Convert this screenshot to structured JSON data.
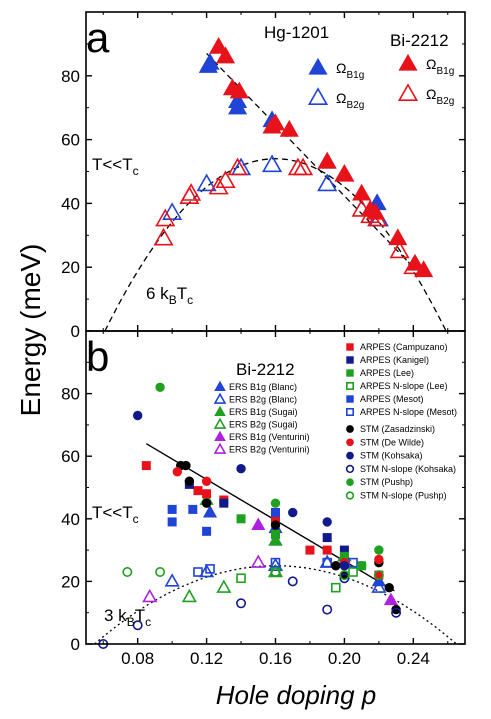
{
  "figure": {
    "ylabel": "Energy  (meV)",
    "xlabel": "Hole doping  p",
    "xticks": [
      "0.08",
      "0.12",
      "0.16",
      "0.20",
      "0.24"
    ],
    "colors": {
      "blue": "#1f44d6",
      "red": "#e8121a",
      "green": "#20a020",
      "black": "#000000",
      "purple": "#b020e0",
      "darkblue": "#101a8c"
    }
  },
  "chart_data": [
    {
      "type": "scatter",
      "panel_label": "a",
      "xlim": [
        0.05,
        0.27
      ],
      "ylim": [
        0,
        100
      ],
      "yticks": [
        "0",
        "20",
        "40",
        "60",
        "80"
      ],
      "annotations": {
        "regime": "T<<T",
        "regime_sub": "c",
        "line": "6 k",
        "line_sub1": "B",
        "line_mid": "T",
        "line_sub2": "c"
      },
      "legend": {
        "group1": "Hg-1201",
        "group2": "Bi-2212",
        "omega": "Ω",
        "b1g": "B1g",
        "b2g": "B2g"
      },
      "series": [
        {
          "name": "Hg-1201 ΩB1g",
          "marker": "tri-filled",
          "color": "#1f44d6",
          "points": [
            [
              0.121,
              83
            ],
            [
              0.122,
              84
            ],
            [
              0.138,
              70
            ],
            [
              0.138,
              72
            ],
            [
              0.158,
              66
            ],
            [
              0.19,
              53
            ],
            [
              0.219,
              40
            ]
          ]
        },
        {
          "name": "Hg-1201 ΩB2g",
          "marker": "tri-open",
          "color": "#1f44d6",
          "points": [
            [
              0.1,
              37
            ],
            [
              0.12,
              46
            ],
            [
              0.14,
              51
            ],
            [
              0.158,
              52
            ],
            [
              0.19,
              46
            ],
            [
              0.22,
              35
            ]
          ]
        },
        {
          "name": "Bi-2212 ΩB1g",
          "marker": "tri-filled",
          "color": "#e8121a",
          "points": [
            [
              0.127,
              89
            ],
            [
              0.131,
              86
            ],
            [
              0.135,
              76
            ],
            [
              0.139,
              75
            ],
            [
              0.158,
              64
            ],
            [
              0.16,
              65
            ],
            [
              0.168,
              63
            ],
            [
              0.19,
              53
            ],
            [
              0.2,
              49
            ],
            [
              0.21,
              43
            ],
            [
              0.215,
              38
            ],
            [
              0.218,
              37
            ],
            [
              0.231,
              29
            ],
            [
              0.241,
              21
            ],
            [
              0.246,
              19
            ]
          ]
        },
        {
          "name": "Bi-2212 ΩB2g",
          "marker": "tri-open",
          "color": "#e8121a",
          "points": [
            [
              0.095,
              29
            ],
            [
              0.096,
              35
            ],
            [
              0.11,
              42
            ],
            [
              0.111,
              43
            ],
            [
              0.127,
              45
            ],
            [
              0.131,
              47
            ],
            [
              0.138,
              51
            ],
            [
              0.173,
              51
            ],
            [
              0.176,
              51
            ],
            [
              0.2,
              49
            ],
            [
              0.21,
              38
            ],
            [
              0.215,
              36
            ],
            [
              0.219,
              35
            ],
            [
              0.232,
              25
            ],
            [
              0.24,
              20
            ]
          ]
        }
      ],
      "fit_lines": [
        {
          "style": "dashed",
          "points": [
            [
              0.12,
              87
            ],
            [
              0.24,
              20
            ]
          ]
        },
        {
          "style": "dashed-parabola",
          "center": 0.16,
          "peak": 54,
          "zero_left": 0.061,
          "zero_right": 0.259
        }
      ]
    },
    {
      "type": "scatter",
      "panel_label": "b",
      "xlim": [
        0.05,
        0.27
      ],
      "ylim": [
        0,
        100
      ],
      "yticks": [
        "0",
        "20",
        "40",
        "60",
        "80"
      ],
      "annotations": {
        "regime": "T<<T",
        "regime_sub": "c",
        "line": "3 k",
        "line_sub1": "B",
        "line_mid": "T",
        "line_sub2": "c"
      },
      "legend_title": "Bi-2212",
      "legend_left": [
        {
          "label": "ERS  B1g (Blanc)",
          "marker": "tri-filled",
          "color": "#1f44d6"
        },
        {
          "label": "ERS  B2g (Blanc)",
          "marker": "tri-open",
          "color": "#1f44d6"
        },
        {
          "label": "ERS  B1g (Sugai)",
          "marker": "tri-filled",
          "color": "#20a020"
        },
        {
          "label": "ERS  B2g (Sugai)",
          "marker": "tri-open",
          "color": "#20a020"
        },
        {
          "label": "ERS  B1g (Venturini)",
          "marker": "tri-filled",
          "color": "#b020e0"
        },
        {
          "label": "ERS B2g (Venturini)",
          "marker": "tri-open",
          "color": "#b020e0"
        }
      ],
      "legend_right": [
        {
          "label": "ARPES (Campuzano)",
          "marker": "sq-filled",
          "color": "#e8121a"
        },
        {
          "label": "ARPES (Kanigel)",
          "marker": "sq-filled",
          "color": "#101a8c"
        },
        {
          "label": "ARPES (Lee)",
          "marker": "sq-filled",
          "color": "#20a020"
        },
        {
          "label": "ARPES N-slope (Lee)",
          "marker": "sq-open",
          "color": "#20a020"
        },
        {
          "label": "ARPES (Mesot)",
          "marker": "sq-filled",
          "color": "#1f44d6"
        },
        {
          "label": "ARPES N-slope (Mesot)",
          "marker": "sq-open",
          "color": "#1f44d6"
        },
        {
          "label": "STM (Zasadzinski)",
          "marker": "ci-filled",
          "color": "#000000"
        },
        {
          "label": "STM (De Wilde)",
          "marker": "ci-filled",
          "color": "#e8121a"
        },
        {
          "label": "STM (Kohsaka)",
          "marker": "ci-filled",
          "color": "#101a8c"
        },
        {
          "label": "STM N-slope (Kohsaka)",
          "marker": "ci-open",
          "color": "#101a8c"
        },
        {
          "label": "STM (Pushp)",
          "marker": "ci-filled",
          "color": "#20a020"
        },
        {
          "label": "STM N-slope (Pushp)",
          "marker": "ci-open",
          "color": "#20a020"
        }
      ],
      "series": [
        {
          "name": "ERS  B1g (Blanc)",
          "marker": "tri-filled",
          "color": "#1f44d6",
          "points": [
            [
              0.122,
              42
            ],
            [
              0.16,
              37
            ],
            [
              0.16,
              33
            ],
            [
              0.2,
              28
            ],
            [
              0.22,
              20
            ]
          ]
        },
        {
          "name": "ERS  B2g (Blanc)",
          "marker": "tri-open",
          "color": "#1f44d6",
          "points": [
            [
              0.1,
              20
            ],
            [
              0.12,
              23
            ],
            [
              0.16,
              25
            ],
            [
              0.19,
              26
            ],
            [
              0.22,
              18
            ]
          ]
        },
        {
          "name": "ERS  B1g (Sugai)",
          "marker": "tri-filled",
          "color": "#20a020",
          "points": [
            [
              0.12,
              46
            ],
            [
              0.16,
              33
            ],
            [
              0.2,
              28
            ]
          ]
        },
        {
          "name": "ERS  B2g (Sugai)",
          "marker": "tri-open",
          "color": "#20a020",
          "points": [
            [
              0.11,
              15
            ],
            [
              0.13,
              18
            ],
            [
              0.16,
              23
            ]
          ]
        },
        {
          "name": "ERS  B1g (Venturini)",
          "marker": "tri-filled",
          "color": "#b020e0",
          "points": [
            [
              0.15,
              38
            ],
            [
              0.227,
              14
            ]
          ]
        },
        {
          "name": "ERS B2g (Venturini)",
          "marker": "tri-open",
          "color": "#b020e0",
          "points": [
            [
              0.087,
              15
            ],
            [
              0.15,
              26
            ]
          ]
        },
        {
          "name": "ARPES (Campuzano)",
          "marker": "sq-filled",
          "color": "#e8121a",
          "points": [
            [
              0.085,
              57
            ],
            [
              0.115,
              49
            ],
            [
              0.12,
              48
            ],
            [
              0.13,
              46
            ],
            [
              0.16,
              40
            ],
            [
              0.18,
              30
            ],
            [
              0.19,
              30
            ],
            [
              0.2,
              27
            ],
            [
              0.22,
              22
            ]
          ]
        },
        {
          "name": "ARPES (Kanigel)",
          "marker": "sq-filled",
          "color": "#101a8c",
          "points": [
            [
              0.11,
              51
            ],
            [
              0.13,
              45
            ],
            [
              0.16,
              42
            ],
            [
              0.19,
              34
            ],
            [
              0.2,
              30
            ]
          ]
        },
        {
          "name": "ARPES (Lee)",
          "marker": "sq-filled",
          "color": "#20a020",
          "points": [
            [
              0.14,
              40
            ],
            [
              0.16,
              35
            ],
            [
              0.2,
              28
            ],
            [
              0.21,
              25
            ]
          ]
        },
        {
          "name": "ARPES N-slope (Lee)",
          "marker": "sq-open",
          "color": "#20a020",
          "points": [
            [
              0.14,
              21
            ],
            [
              0.16,
              23
            ],
            [
              0.195,
              18
            ],
            [
              0.205,
              23
            ]
          ]
        },
        {
          "name": "ARPES (Mesot)",
          "marker": "sq-filled",
          "color": "#1f44d6",
          "points": [
            [
              0.1,
              43
            ],
            [
              0.1,
              39
            ],
            [
              0.112,
              43
            ],
            [
              0.12,
              36
            ],
            [
              0.16,
              42
            ]
          ]
        },
        {
          "name": "ARPES N-slope (Mesot)",
          "marker": "sq-open",
          "color": "#1f44d6",
          "points": [
            [
              0.115,
              23
            ],
            [
              0.122,
              24
            ],
            [
              0.16,
              26
            ],
            [
              0.19,
              26
            ],
            [
              0.205,
              26
            ]
          ]
        },
        {
          "name": "STM (Zasadzinski)",
          "marker": "ci-filled",
          "color": "#000000",
          "points": [
            [
              0.105,
              57
            ],
            [
              0.108,
              57
            ],
            [
              0.11,
              52
            ],
            [
              0.12,
              45
            ],
            [
              0.16,
              38
            ],
            [
              0.195,
              25
            ],
            [
              0.2,
              22
            ],
            [
              0.22,
              26
            ],
            [
              0.226,
              18
            ],
            [
              0.23,
              11
            ]
          ]
        },
        {
          "name": "STM (De Wilde)",
          "marker": "ci-filled",
          "color": "#e8121a",
          "points": [
            [
              0.103,
              55
            ],
            [
              0.12,
              52
            ],
            [
              0.2,
              26
            ],
            [
              0.22,
              27
            ]
          ]
        },
        {
          "name": "STM (Kohsaka)",
          "marker": "ci-filled",
          "color": "#101a8c",
          "points": [
            [
              0.08,
              73
            ],
            [
              0.14,
              56
            ],
            [
              0.17,
              42
            ],
            [
              0.19,
              39
            ],
            [
              0.2,
              25
            ]
          ]
        },
        {
          "name": "STM N-slope (Kohsaka)",
          "marker": "ci-open",
          "color": "#101a8c",
          "points": [
            [
              0.06,
              0
            ],
            [
              0.08,
              6
            ],
            [
              0.14,
              13
            ],
            [
              0.17,
              20
            ],
            [
              0.19,
              11
            ],
            [
              0.2,
              21
            ],
            [
              0.23,
              10
            ]
          ]
        },
        {
          "name": "STM (Pushp)",
          "marker": "ci-filled",
          "color": "#20a020",
          "points": [
            [
              0.093,
              82
            ],
            [
              0.16,
              45
            ],
            [
              0.21,
              25
            ],
            [
              0.22,
              30
            ]
          ]
        },
        {
          "name": "STM N-slope (Pushp)",
          "marker": "ci-open",
          "color": "#20a020",
          "points": [
            [
              0.074,
              23
            ],
            [
              0.093,
              23
            ],
            [
              0.16,
              23
            ],
            [
              0.2,
              22
            ],
            [
              0.22,
              22
            ]
          ]
        }
      ],
      "fit_lines": [
        {
          "style": "solid",
          "points": [
            [
              0.085,
              64
            ],
            [
              0.229,
              17
            ]
          ]
        },
        {
          "style": "dotted-parabola",
          "center": 0.16,
          "peak": 25,
          "zero_left": 0.055,
          "zero_right": 0.265
        }
      ]
    }
  ]
}
